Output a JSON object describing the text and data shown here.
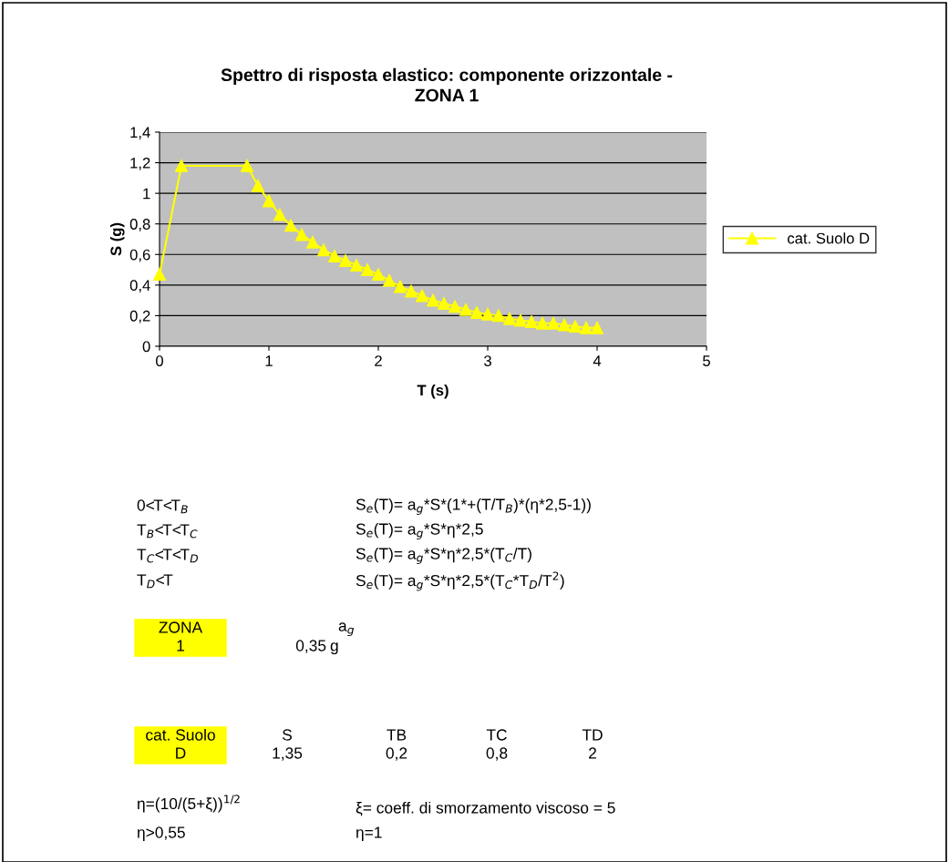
{
  "chart_data": {
    "type": "line",
    "title": "Spettro di risposta elastico: componente orizzontale -\nZONA 1",
    "xlabel": "T (s)",
    "ylabel": "S (g)",
    "xlim": [
      0,
      5
    ],
    "xticks": [
      0,
      1,
      2,
      3,
      4,
      5
    ],
    "ylim": [
      0,
      1.4
    ],
    "yticks": [
      0,
      {
        "value": 0.2,
        "label": "0,2"
      },
      {
        "value": 0.4,
        "label": "0,4"
      },
      {
        "value": 0.6,
        "label": "0,6"
      },
      {
        "value": 0.8,
        "label": "0,8"
      },
      1,
      {
        "value": 1.2,
        "label": "1,2"
      },
      {
        "value": 1.4,
        "label": "1,4"
      }
    ],
    "grid": "y",
    "legend": "right",
    "marker": "triangle",
    "line_style": "solid",
    "series": [
      {
        "name": "cat. Suolo D",
        "color": "#ffff00",
        "x": [
          0,
          0.2,
          0.8,
          0.9,
          1.0,
          1.1,
          1.2,
          1.3,
          1.4,
          1.5,
          1.6,
          1.7,
          1.8,
          1.9,
          2.0,
          2.1,
          2.2,
          2.3,
          2.4,
          2.5,
          2.6,
          2.7,
          2.8,
          2.9,
          3.0,
          3.1,
          3.2,
          3.3,
          3.4,
          3.5,
          3.6,
          3.7,
          3.8,
          3.9,
          4.0
        ],
        "values": [
          0.47,
          1.18,
          1.18,
          1.05,
          0.95,
          0.86,
          0.79,
          0.73,
          0.68,
          0.63,
          0.59,
          0.56,
          0.53,
          0.5,
          0.47,
          0.43,
          0.39,
          0.36,
          0.33,
          0.3,
          0.28,
          0.26,
          0.24,
          0.22,
          0.21,
          0.2,
          0.18,
          0.17,
          0.16,
          0.15,
          0.15,
          0.14,
          0.13,
          0.12,
          0.12
        ]
      }
    ],
    "annotations": [
      "0<T<T$_{B}$",
      "S$_{e}$(T)= a$_{g}$*S*(1*+(T/T$_{B}$)*(η*2,5-1))",
      "T$_{B}$<T<T$_{C}$",
      "S$_{e}$(T)= a$_{g}$*S*η*2,5",
      "T$_{C}$<T<T$_{D}$",
      "S$_{e}$(T)= a$_{g}$*S*η*2,5*(T$_{C}$/T)",
      "T$_{D}$<T",
      "S$_{e}$(T)= a$_{g}$*S*η*2,5*(T$_{C}$*T$_{D}$/T$^{2}$)",
      "ZONA",
      "a$_{g}$",
      "1",
      "0,35",
      "g",
      "cat. Suolo",
      "S",
      "TB",
      "TC",
      "TD",
      "D",
      "1,35",
      "0,2",
      "0,8",
      "2",
      "η=(10/(5+ξ))$^{1/2}$",
      "ξ= coeff. di smorzamento viscoso = 5",
      "η>0,55",
      "η=1"
    ]
  }
}
